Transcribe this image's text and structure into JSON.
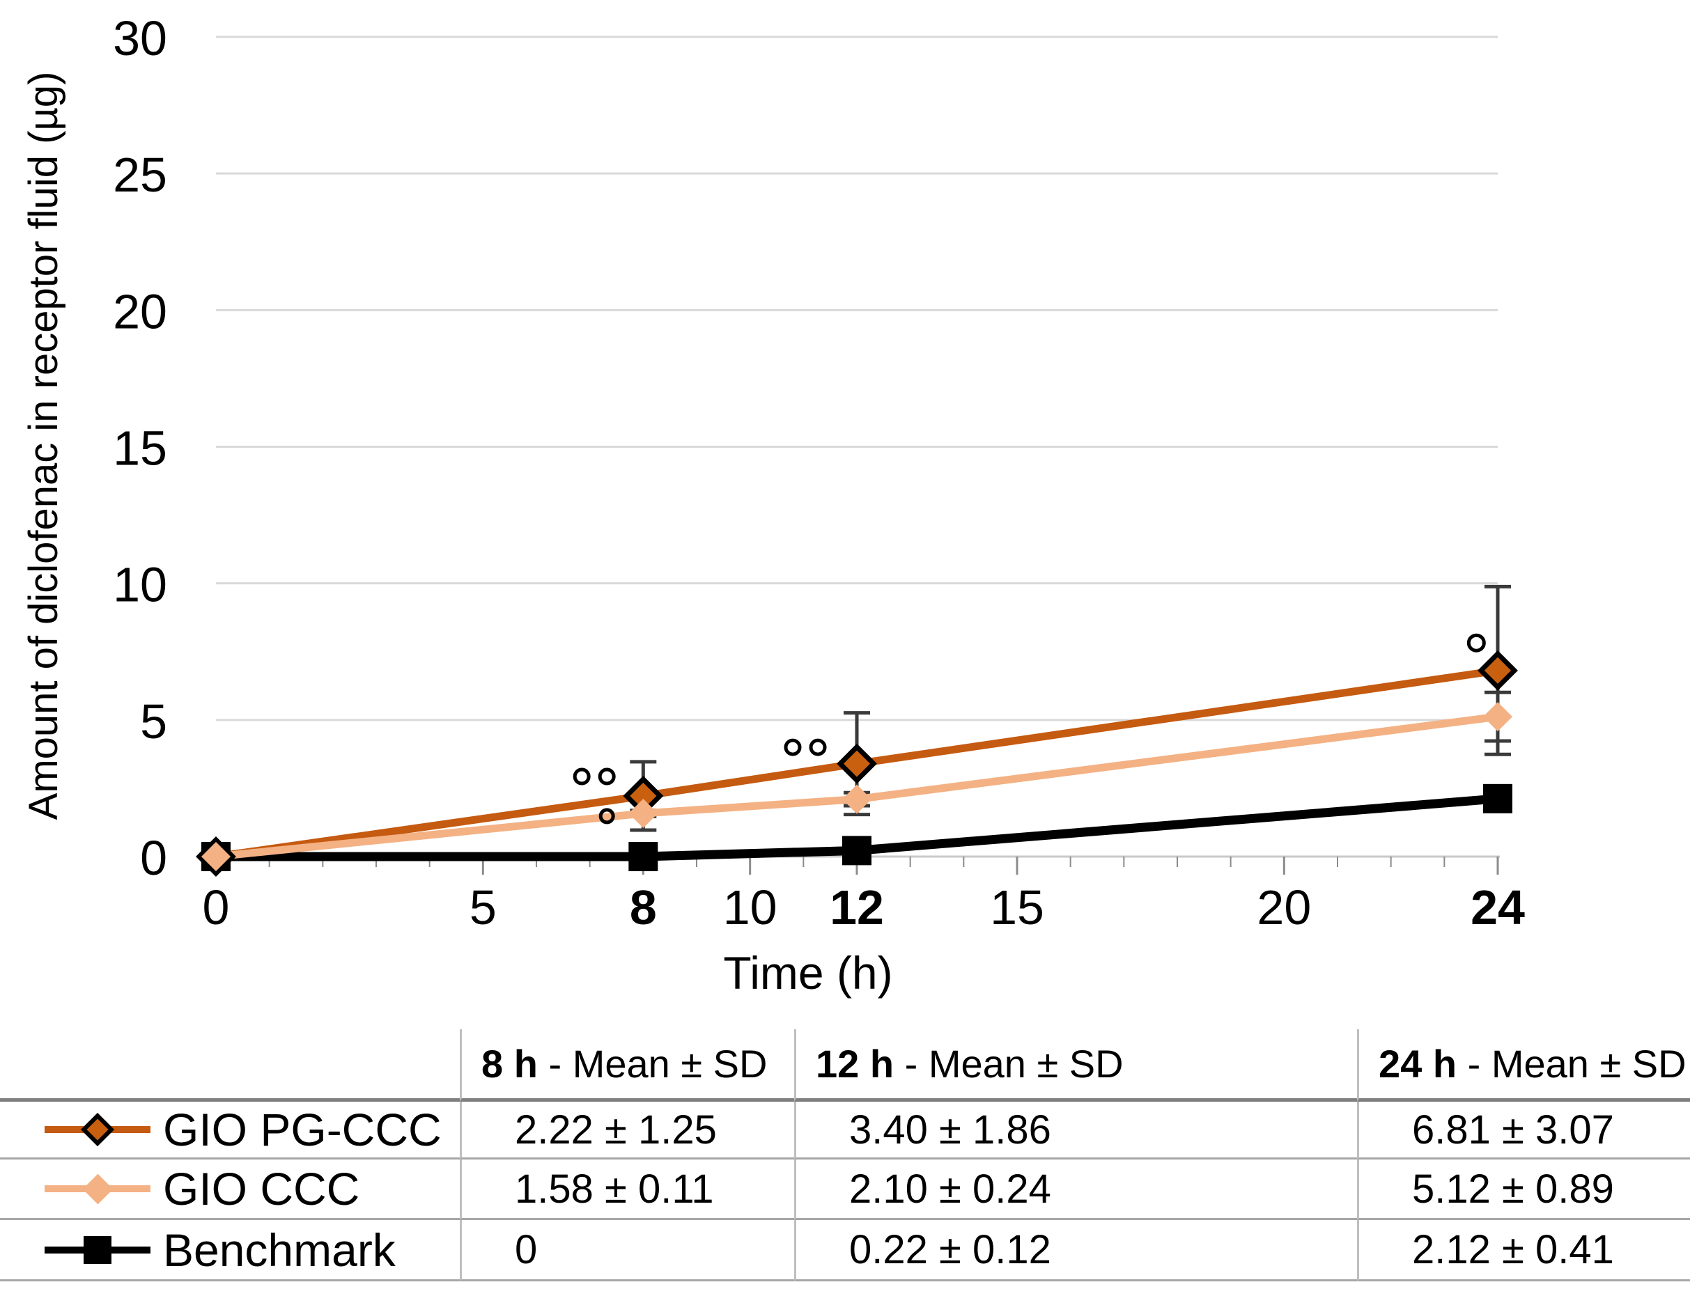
{
  "chart_data": {
    "type": "line",
    "title": "",
    "xlabel": "Time (h)",
    "ylabel": "Amount of diclofenac in receptor fluid (µg)",
    "xlim": [
      0,
      24
    ],
    "ylim": [
      0,
      30
    ],
    "x_ticks": [
      0,
      5,
      8,
      10,
      12,
      15,
      20,
      24
    ],
    "x_ticks_bold": [
      8,
      12,
      24
    ],
    "x_minor_tick_step": 1,
    "y_ticks": [
      0,
      5,
      10,
      15,
      20,
      25,
      30
    ],
    "grid": "horizontal",
    "legend_position": "table-below",
    "series": [
      {
        "name": "GIO PG-CCC",
        "marker": "diamond",
        "line_color": "#C55A11",
        "marker_fill": "#C9600F",
        "marker_outline": "#000000",
        "x": [
          0,
          8,
          12,
          24
        ],
        "y": [
          0,
          2.22,
          3.4,
          6.81
        ],
        "sd": [
          0,
          1.25,
          1.86,
          3.07
        ]
      },
      {
        "name": "GIO CCC",
        "marker": "diamond",
        "line_color": "#F4B183",
        "marker_fill": "#F4B183",
        "marker_outline": "",
        "x": [
          0,
          8,
          12,
          24
        ],
        "y": [
          0,
          1.58,
          2.1,
          5.12
        ],
        "sd": [
          0,
          0.11,
          0.24,
          0.89
        ]
      },
      {
        "name": "Benchmark",
        "marker": "square",
        "line_color": "#000000",
        "marker_fill": "#000000",
        "marker_outline": "",
        "x": [
          0,
          8,
          12,
          24
        ],
        "y": [
          0,
          0,
          0.22,
          2.12
        ],
        "sd": [
          0,
          0,
          0.12,
          0.41
        ]
      }
    ],
    "annotations": [
      {
        "symbol": "°",
        "x": 6.85,
        "y": 2.93,
        "r": 10
      },
      {
        "symbol": "°",
        "x": 7.32,
        "y": 2.93,
        "r": 10
      },
      {
        "symbol": "°",
        "x": 7.32,
        "y": 1.48,
        "r": 9
      },
      {
        "symbol": "°",
        "x": 10.8,
        "y": 4.0,
        "r": 10
      },
      {
        "symbol": "°",
        "x": 11.27,
        "y": 4.0,
        "r": 10
      },
      {
        "symbol": "°",
        "x": 23.6,
        "y": 7.82,
        "r": 11
      }
    ],
    "colors": {
      "grid": "#D9D9D9",
      "axis": "#C9C9C9",
      "tick": "#8C8C8C",
      "error_bar": "#3A3A3A",
      "annotation": "#000000",
      "text": "#000000"
    }
  },
  "table": {
    "headers": [
      {
        "time": "8 h",
        "rest": " - Mean ± SD"
      },
      {
        "time": "12 h",
        "rest": " - Mean ± SD"
      },
      {
        "time": "24 h",
        "rest": " - Mean ± SD"
      }
    ],
    "rows": [
      {
        "label": "GIO PG-CCC",
        "values": [
          "2.22 ± 1.25",
          "3.40 ± 1.86",
          "6.81 ± 3.07"
        ]
      },
      {
        "label": "GIO CCC",
        "values": [
          "1.58 ± 0.11",
          "2.10 ± 0.24",
          "5.12 ± 0.89"
        ]
      },
      {
        "label": "Benchmark",
        "values": [
          "0",
          "0.22 ± 0.12",
          "2.12 ± 0.41"
        ]
      }
    ]
  }
}
